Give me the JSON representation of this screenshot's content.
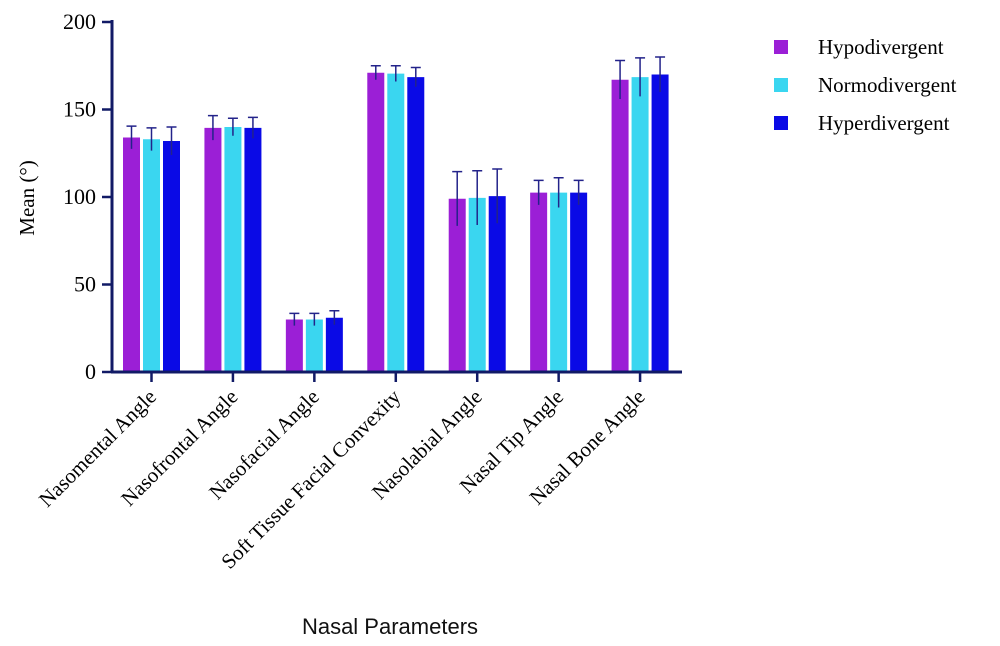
{
  "chart_data": {
    "type": "bar",
    "title": "",
    "xlabel": "Nasal Parameters",
    "ylabel": "Mean (°)",
    "ylim": [
      0,
      200
    ],
    "yticks": [
      0,
      50,
      100,
      150,
      200
    ],
    "categories": [
      "Nasomental Angle",
      "Nasofrontal Angle",
      "Nasofacial Angle",
      "Soft Tissue Facial Convexity",
      "Nasolabial Angle",
      "Nasal Tip Angle",
      "Nasal Bone Angle"
    ],
    "series": [
      {
        "name": "Hypodivergent",
        "color": "#9b1fd6",
        "values": [
          134,
          139.5,
          30,
          171,
          99,
          102.5,
          167
        ],
        "errors": [
          6.5,
          7,
          3.5,
          4,
          15.5,
          7,
          11
        ]
      },
      {
        "name": "Normodivergent",
        "color": "#3ad6f0",
        "values": [
          133,
          140,
          30,
          170.5,
          99.5,
          102.5,
          168.5
        ],
        "errors": [
          6.5,
          5,
          3.5,
          4.5,
          15.5,
          8.5,
          11
        ]
      },
      {
        "name": "Hyperdivergent",
        "color": "#0a0ae6",
        "values": [
          132,
          139.5,
          31,
          168.5,
          100.5,
          102.5,
          170
        ],
        "errors": [
          8,
          6,
          4,
          5.5,
          15.5,
          7,
          10
        ]
      }
    ],
    "legend_position": "top-right",
    "grid": false,
    "error_bars": true
  }
}
